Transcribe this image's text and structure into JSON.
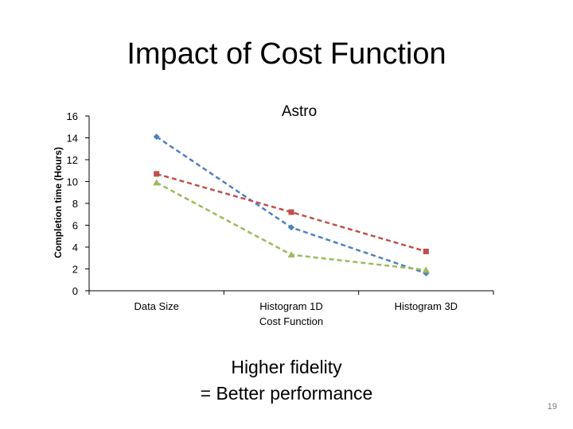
{
  "slide": {
    "title": "Impact of Cost Function",
    "caption_line1": "Higher fidelity",
    "caption_line2": "= Better performance",
    "page_number": "19"
  },
  "chart_data": {
    "type": "line",
    "title": "Astro",
    "xlabel": "",
    "ylabel": "Completion time (Hours)",
    "categories": [
      "Data Size",
      "Histogram 1D Cost Function",
      "Histogram 3D"
    ],
    "category_lines": [
      [
        "Data Size"
      ],
      [
        "Histogram 1D",
        "Cost Function"
      ],
      [
        "Histogram 3D"
      ]
    ],
    "yticks": [
      "0",
      "2",
      "4",
      "6",
      "8",
      "10",
      "12",
      "14",
      "16"
    ],
    "ylim": [
      0,
      16
    ],
    "grid": false,
    "legend": "none",
    "series": [
      {
        "color": "#4f81bd",
        "marker": "diamond",
        "line_style": "dashed",
        "values": [
          14.1,
          5.8,
          1.6
        ]
      },
      {
        "color": "#c0504d",
        "marker": "square",
        "line_style": "dashed",
        "values": [
          10.7,
          7.2,
          3.6
        ]
      },
      {
        "color": "#9bbb59",
        "marker": "triangle",
        "line_style": "dashed",
        "values": [
          9.9,
          3.3,
          1.9
        ]
      }
    ]
  }
}
